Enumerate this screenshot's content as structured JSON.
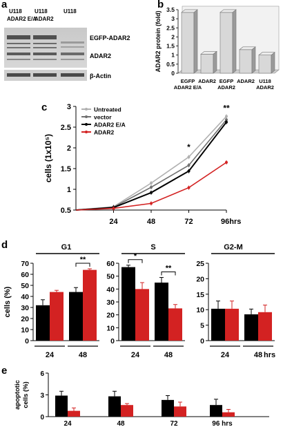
{
  "panels": {
    "a": "a",
    "b": "b",
    "c": "c",
    "d": "d",
    "e": "e"
  },
  "blot": {
    "lane_labels": [
      {
        "line1": "U118",
        "line2": "ADAR2 E/A"
      },
      {
        "line1": "U118",
        "line2": "ADAR2"
      },
      {
        "line1": "U118",
        "line2": ""
      }
    ],
    "band_labels": [
      "EGFP-ADAR2",
      "ADAR2",
      "β-Actin"
    ]
  },
  "chart_data": [
    {
      "panel": "b",
      "type": "bar",
      "ylabel": "ADAR2 protein (fold)",
      "ylim": [
        0,
        3.5
      ],
      "yticks": [
        "0",
        "0.5",
        "1",
        "1.5",
        "2",
        "2.5",
        "3",
        "3.5"
      ],
      "categories": [
        {
          "line1": "EGFP",
          "line2": "ADAR2 E/A"
        },
        {
          "line1": "ADAR2",
          "line2": ""
        },
        {
          "line1": "EGFP",
          "line2": "ADAR2"
        },
        {
          "line1": "ADAR2",
          "line2": ""
        },
        {
          "line1": "U118",
          "line2": "ADAR2"
        }
      ],
      "values": [
        3.35,
        1.05,
        3.35,
        1.3,
        1.0
      ]
    },
    {
      "panel": "c",
      "type": "line",
      "ylabel": "cells (1x10⁵)",
      "x": [
        0,
        24,
        48,
        72,
        96
      ],
      "xtick_labels": [
        "24",
        "48",
        "72",
        "96hrs"
      ],
      "ylim": [
        0.5,
        3
      ],
      "yticks": [
        "0.5",
        "1",
        "1.5",
        "2",
        "2.5",
        "3"
      ],
      "series": [
        {
          "name": "Untreated",
          "color": "#b0b0b0",
          "values": [
            0.5,
            0.58,
            1.15,
            1.78,
            2.76
          ]
        },
        {
          "name": "vector",
          "color": "#707070",
          "values": [
            0.5,
            0.57,
            1.05,
            1.58,
            2.68
          ]
        },
        {
          "name": "ADAR2 E/A",
          "color": "#000000",
          "values": [
            0.5,
            0.56,
            0.92,
            1.44,
            2.62
          ]
        },
        {
          "name": "ADAR2",
          "color": "#d32222",
          "values": [
            0.5,
            0.54,
            0.66,
            1.04,
            1.65
          ]
        }
      ],
      "annotations": [
        "*",
        "**"
      ]
    },
    {
      "panel": "d",
      "type": "bar",
      "ylabel": "cells (%)",
      "groups": [
        {
          "title": "G1",
          "ylim": [
            0,
            70
          ],
          "yticks": [
            "0",
            "10",
            "20",
            "30",
            "40",
            "50",
            "60",
            "70"
          ],
          "categories": [
            "24",
            "48"
          ],
          "black": [
            32,
            44
          ],
          "red": [
            44,
            64
          ],
          "black_err": [
            5,
            4
          ],
          "red_err": [
            1.5,
            1
          ],
          "brackets": [
            {
              "cat": 1,
              "text": "**"
            }
          ]
        },
        {
          "title": "S",
          "ylim": [
            0,
            60
          ],
          "yticks": [
            "0",
            "10",
            "20",
            "30",
            "40",
            "50",
            "60"
          ],
          "categories": [
            "24",
            "48"
          ],
          "black": [
            57,
            45
          ],
          "red": [
            40,
            25
          ],
          "black_err": [
            1.5,
            4
          ],
          "red_err": [
            5,
            3
          ],
          "brackets": [
            {
              "cat": 0,
              "text": "*"
            },
            {
              "cat": 1,
              "text": "**"
            }
          ]
        },
        {
          "title": "G2-M",
          "ylim": [
            0,
            25
          ],
          "yticks": [
            "0",
            "5",
            "10",
            "15",
            "20",
            "25"
          ],
          "categories": [
            "24",
            "48"
          ],
          "black": [
            10.3,
            8.5
          ],
          "red": [
            10.3,
            9.2
          ],
          "black_err": [
            2.5,
            1.7
          ],
          "red_err": [
            2.5,
            2.3
          ],
          "brackets": []
        }
      ],
      "xunit": "hrs"
    },
    {
      "panel": "e",
      "type": "bar",
      "ylabel": "apoptotic cells (%)",
      "ylabel_lines": [
        "apoptotic",
        "cells (%)"
      ],
      "ylim": [
        0,
        6
      ],
      "yticks": [
        "0",
        "3",
        "6"
      ],
      "categories": [
        "24",
        "48",
        "72",
        "96 hrs"
      ],
      "black": [
        2.9,
        2.8,
        2.3,
        1.6
      ],
      "red": [
        0.8,
        1.6,
        1.4,
        0.6
      ],
      "black_err": [
        0.6,
        0.7,
        0.6,
        0.8
      ],
      "red_err": [
        0.4,
        0.2,
        0.6,
        0.4
      ]
    }
  ]
}
